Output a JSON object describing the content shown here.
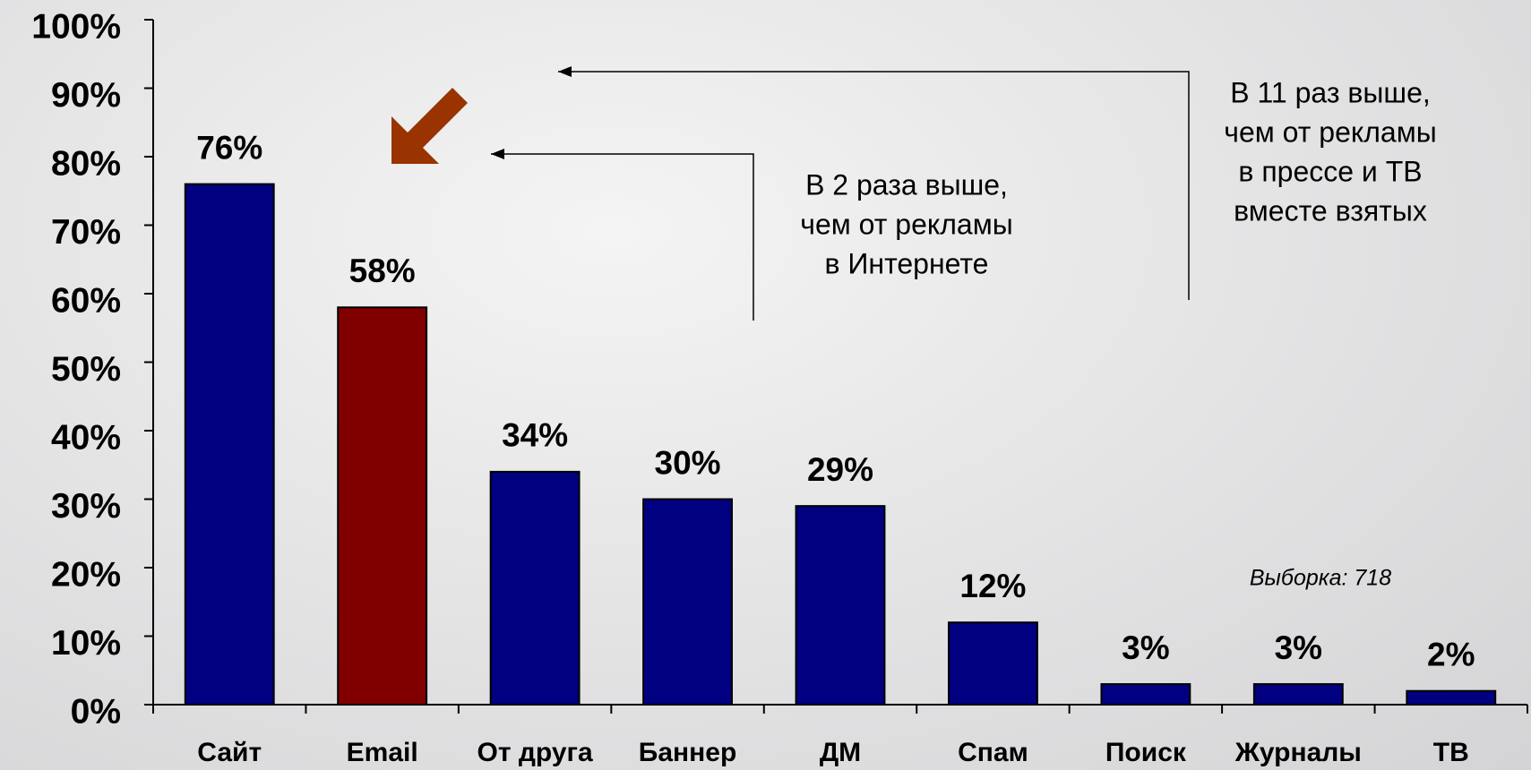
{
  "chart_data": {
    "type": "bar",
    "categories": [
      "Сайт",
      "Email",
      "От друга",
      "Баннер",
      "ДМ",
      "Спам",
      "Поиск",
      "Журналы",
      "ТВ"
    ],
    "values": [
      76,
      58,
      34,
      30,
      29,
      12,
      3,
      3,
      2
    ],
    "value_labels": [
      "76%",
      "58%",
      "34%",
      "30%",
      "29%",
      "12%",
      "3%",
      "3%",
      "2%"
    ],
    "colors": [
      "#000080",
      "#800000",
      "#000080",
      "#000080",
      "#000080",
      "#000080",
      "#000080",
      "#000080",
      "#000080"
    ],
    "ylim": [
      0,
      100
    ],
    "yticks": [
      {
        "value": 0,
        "label": "0%"
      },
      {
        "value": 10,
        "label": "10%"
      },
      {
        "value": 20,
        "label": "20%"
      },
      {
        "value": 30,
        "label": "30%"
      },
      {
        "value": 40,
        "label": "40%"
      },
      {
        "value": 50,
        "label": "50%"
      },
      {
        "value": 60,
        "label": "60%"
      },
      {
        "value": 70,
        "label": "70%"
      },
      {
        "value": 80,
        "label": "80%"
      },
      {
        "value": 90,
        "label": "90%"
      },
      {
        "value": 100,
        "label": "100%"
      }
    ],
    "grid": false,
    "annotations": [
      {
        "lines": [
          "В 2 раза выше,",
          "чем от рекламы",
          "в Интернете"
        ]
      },
      {
        "lines": [
          "В 11 раз выше,",
          "чем от рекламы",
          "в прессе и ТВ",
          "вместе взятых"
        ]
      },
      {
        "lines": [
          "Выборка: 718"
        ]
      }
    ]
  }
}
